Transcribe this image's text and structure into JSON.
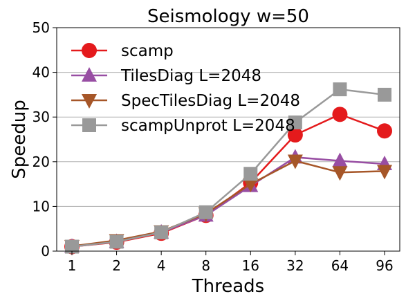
{
  "chart_data": {
    "type": "line",
    "title": "Seismology w=50",
    "xlabel": "Threads",
    "ylabel": "Speedup",
    "categories": [
      "1",
      "2",
      "4",
      "8",
      "16",
      "32",
      "64",
      "96"
    ],
    "ylim": [
      0,
      50
    ],
    "yticks": [
      0,
      10,
      20,
      30,
      40,
      50
    ],
    "grid": "horizontal",
    "legend_position": "top-left",
    "series": [
      {
        "name": "scamp",
        "color": "#e41a1c",
        "marker": "circle",
        "values": [
          1.0,
          2.0,
          4.0,
          8.0,
          15.3,
          26.0,
          30.6,
          26.9
        ]
      },
      {
        "name": "TilesDiag L=2048",
        "color": "#984ea3",
        "marker": "triangle-up",
        "values": [
          1.0,
          2.1,
          4.2,
          8.0,
          14.6,
          21.0,
          20.2,
          19.5
        ]
      },
      {
        "name": "SpecTilesDiag L=2048",
        "color": "#a65628",
        "marker": "triangle-down",
        "values": [
          1.1,
          2.4,
          4.4,
          8.4,
          15.0,
          20.2,
          17.6,
          17.9
        ]
      },
      {
        "name": "scampUnprot L=2048",
        "color": "#999999",
        "marker": "square",
        "values": [
          1.0,
          2.1,
          4.2,
          8.7,
          17.3,
          28.8,
          36.2,
          35.0
        ]
      }
    ]
  }
}
